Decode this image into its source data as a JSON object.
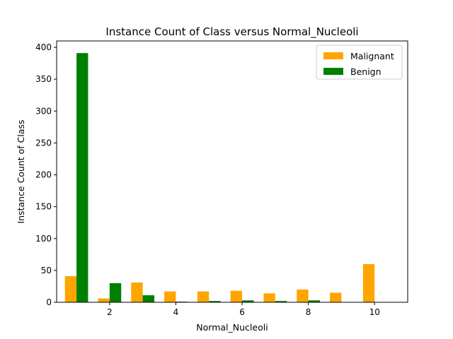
{
  "chart_data": {
    "type": "bar",
    "title": "Instance Count of Class versus Normal_Nucleoli",
    "xlabel": "Normal_Nucleoli",
    "ylabel": "Instance Count of Class",
    "x": [
      1,
      2,
      3,
      4,
      5,
      6,
      7,
      8,
      9,
      10
    ],
    "xlim": [
      0.4,
      11.0
    ],
    "ylim": [
      0,
      410
    ],
    "xticks": [
      2,
      4,
      6,
      8,
      10
    ],
    "yticks": [
      0,
      50,
      100,
      150,
      200,
      250,
      300,
      350,
      400
    ],
    "legend_position": "top-right",
    "grid": false,
    "series": [
      {
        "name": "Malignant",
        "color": "#FFA500",
        "values": [
          41,
          6,
          31,
          17,
          17,
          18,
          14,
          20,
          15,
          60
        ]
      },
      {
        "name": "Benign",
        "color": "#008000",
        "values": [
          391,
          30,
          11,
          1,
          2,
          3,
          2,
          3,
          0,
          0
        ]
      }
    ]
  }
}
